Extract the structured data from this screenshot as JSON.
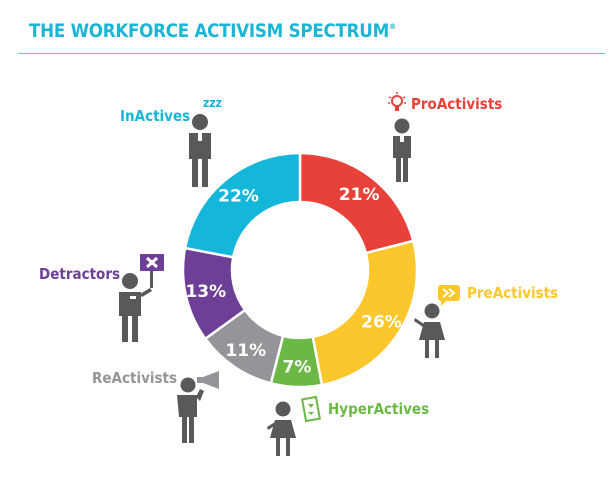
{
  "header": {
    "title": "THE WORKFORCE ACTIVISM SPECTRUM",
    "mark": "®"
  },
  "colors": {
    "title": "#1bb6d6",
    "figure": "#58595b"
  },
  "chart_data": {
    "type": "pie",
    "variant": "donut",
    "title": "THE WORKFORCE ACTIVISM SPECTRUM®",
    "order": "clockwise from top",
    "categories": [
      "ProActivists",
      "PreActivists",
      "HyperActives",
      "ReActivists",
      "Detractors",
      "InActives"
    ],
    "values": [
      21,
      26,
      7,
      11,
      13,
      22
    ],
    "unit": "%",
    "colors": [
      "#e8413a",
      "#fcc72c",
      "#6cb847",
      "#939598",
      "#6e3f96",
      "#14b7da"
    ],
    "labels": [
      "21%",
      "26%",
      "7%",
      "11%",
      "13%",
      "22%"
    ]
  },
  "legend": [
    {
      "name": "ProActivists",
      "color": "#e8413a",
      "icon": "lightbulb-icon"
    },
    {
      "name": "PreActivists",
      "color": "#fcc72c",
      "icon": "fast-forward-bubble-icon"
    },
    {
      "name": "HyperActives",
      "color": "#6cb847",
      "icon": "sign-card-icon"
    },
    {
      "name": "ReActivists",
      "color": "#939598",
      "icon": "megaphone-icon"
    },
    {
      "name": "Detractors",
      "color": "#6e3f96",
      "icon": "x-sign-icon"
    },
    {
      "name": "InActives",
      "color": "#14b7da",
      "icon": "zzz-icon",
      "icon_text": "zzz"
    }
  ]
}
